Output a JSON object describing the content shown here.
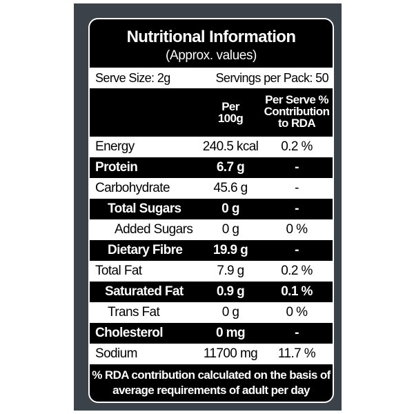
{
  "title": "Nutritional Information",
  "subtitle": "(Approx. values)",
  "serve_size": "Serve Size: 2g",
  "servings": "Servings per Pack: 50",
  "table": {
    "header": [
      "Per 100g",
      "Per Serve % Contribution to RDA"
    ],
    "rows": [
      [
        "Energy",
        "240.5 kcal",
        "0.2 %"
      ],
      [
        "Protein",
        "6.7 g",
        "-"
      ],
      [
        "Carbohydrate",
        "45.6 g",
        "-"
      ],
      [
        "Total Sugars",
        "0 g",
        "-"
      ],
      [
        "Added Sugars",
        "0 g",
        "0 %"
      ],
      [
        "Dietary Fibre",
        "19.9 g",
        "-"
      ],
      [
        "Total Fat",
        "7.9 g",
        "0.2 %"
      ],
      [
        "Saturated Fat",
        "0.9 g",
        "0.1 %"
      ],
      [
        "Trans Fat",
        "0 g",
        "0 %"
      ],
      [
        "Cholesterol",
        "0 mg",
        "-"
      ],
      [
        "Sodium",
        "11700 mg",
        "11.7 %"
      ]
    ]
  },
  "footer": "% RDA contribution calculated on the basis of average requirements of adult per day"
}
